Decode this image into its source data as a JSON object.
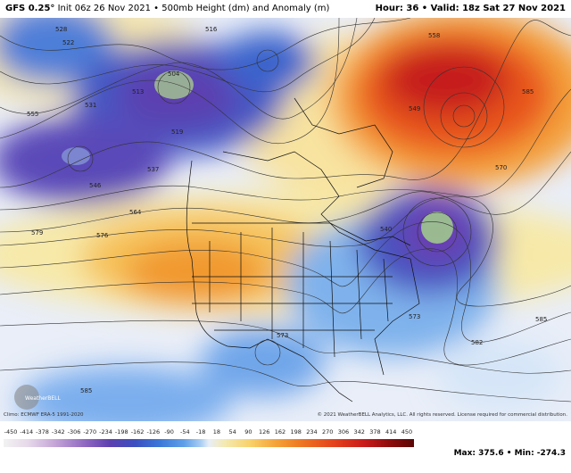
{
  "header": {
    "model": "GFS 0.25°",
    "init": "Init 06z 26 Nov 2021 • 500mb Height (dm) and Anomaly (m)",
    "valid": "Hour: 36 • Valid: 18z Sat 27 Nov 2021"
  },
  "contour_labels": [
    "522",
    "516",
    "504",
    "513",
    "519",
    "528",
    "531",
    "537",
    "546",
    "555",
    "564",
    "576",
    "579",
    "585",
    "573",
    "582",
    "558",
    "549",
    "540",
    "570",
    "585",
    "573",
    "585"
  ],
  "footer": {
    "climo": "Climo: ECMWF ERA-5 1991-2020",
    "copyright": "© 2021 WeatherBELL Analytics, LLC. All rights reserved. License required for commercial distribution.",
    "logo": "WeatherBELL",
    "maxmin": "Max: 375.6 • Min: -274.3"
  },
  "colorbar_labels": [
    "-450",
    "-414",
    "-378",
    "-342",
    "-306",
    "-270",
    "-234",
    "-198",
    "-162",
    "-126",
    "-90",
    "-54",
    "-18",
    "18",
    "54",
    "90",
    "126",
    "162",
    "198",
    "234",
    "270",
    "306",
    "342",
    "378",
    "414",
    "450"
  ]
}
